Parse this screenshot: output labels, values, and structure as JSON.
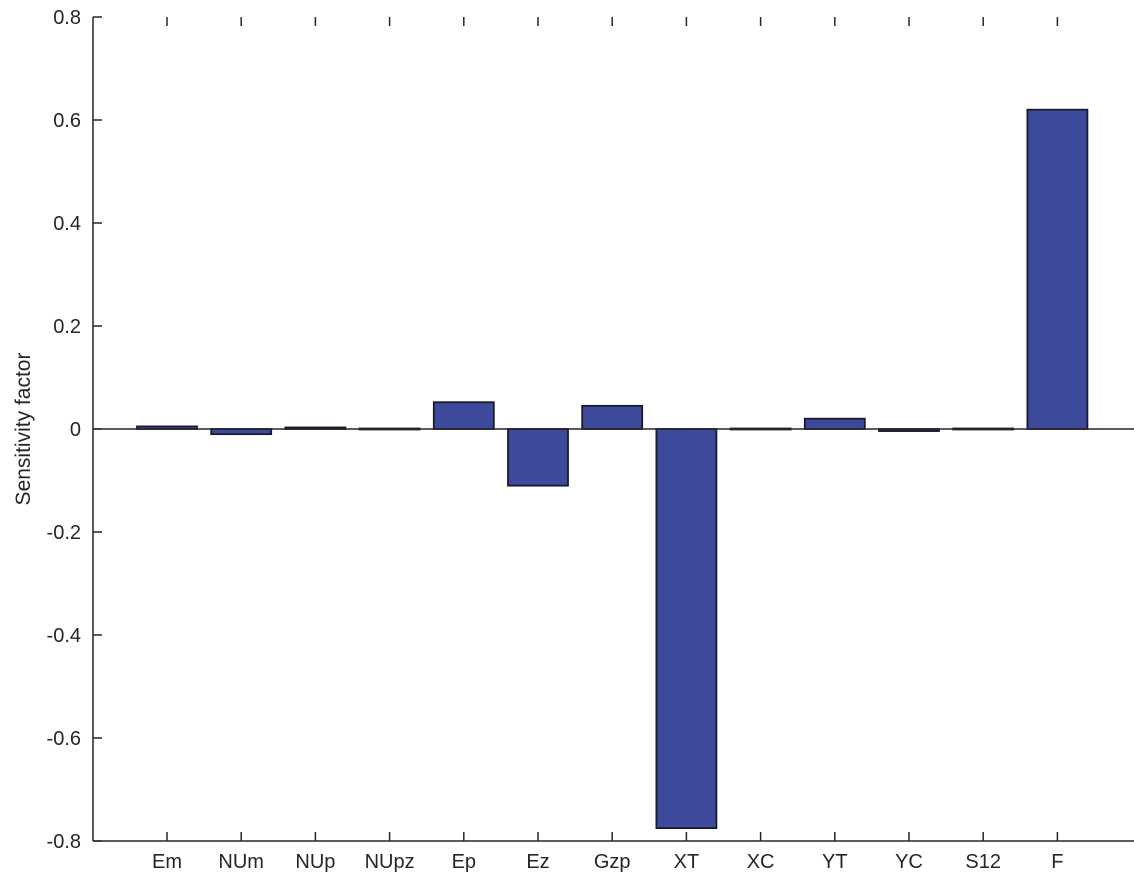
{
  "chart_data": {
    "type": "bar",
    "title": "",
    "xlabel": "",
    "ylabel": "Sensitivity factor",
    "categories": [
      "Em",
      "NUm",
      "NUp",
      "NUpz",
      "Ep",
      "Ez",
      "Gzp",
      "XT",
      "XC",
      "YT",
      "YC",
      "S12",
      "F"
    ],
    "values": [
      0.005,
      -0.01,
      0.003,
      0.001,
      0.052,
      -0.11,
      0.045,
      -0.775,
      0.001,
      0.02,
      -0.004,
      0.001,
      0.62
    ],
    "ylim": [
      -0.8,
      0.8
    ],
    "yticks": [
      "0.8",
      "0.6",
      "0.4",
      "0.2",
      "0",
      "-0.2",
      "-0.4",
      "-0.6",
      "-0.8"
    ],
    "grid": false,
    "colors": {
      "bar_fill": "#3d4a9c",
      "bar_edge": "#1a1a2e",
      "axis": "#262626"
    }
  }
}
